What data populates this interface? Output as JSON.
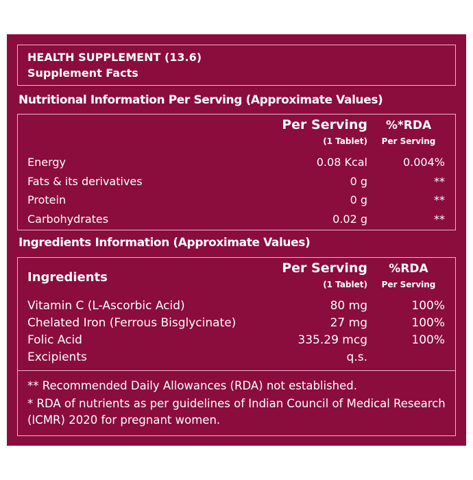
{
  "header": {
    "title": "HEALTH SUPPLEMENT (13.6)",
    "subtitle": "Supplement Facts"
  },
  "nutrition": {
    "heading": "Nutritional Information Per Serving (Approximate Values)",
    "columns": [
      {
        "title": "Per Serving",
        "sub": "(1 Tablet)"
      },
      {
        "title": "%*RDA",
        "sub": "Per Serving"
      }
    ],
    "rows": [
      [
        "Energy",
        "0.08 Kcal",
        "0.004%"
      ],
      [
        "Fats & its derivatives",
        "0 g",
        "**"
      ],
      [
        "Protein",
        "0 g",
        "**"
      ],
      [
        "Carbohydrates",
        "0.02 g",
        "**"
      ]
    ]
  },
  "ingredients": {
    "heading": "Ingredients Information (Approximate Values)",
    "label": "Ingredients",
    "columns": [
      {
        "title": "Per Serving",
        "sub": "(1 Tablet)"
      },
      {
        "title": "%RDA",
        "sub": "Per Serving"
      }
    ],
    "rows": [
      [
        "Vitamin C (L-Ascorbic Acid)",
        "80 mg",
        "100%"
      ],
      [
        "Chelated Iron (Ferrous Bisglycinate)",
        "27 mg",
        "100%"
      ],
      [
        "Folic Acid",
        "335.29 mcg",
        "100%"
      ],
      [
        "Excipients",
        "q.s."
      ]
    ]
  },
  "footnotes": [
    "** Recommended Daily Allowances (RDA) not established.",
    "* RDA of nutrients as per guidelines of Indian Council of Medical Research (ICMR) 2020 for pregnant women."
  ]
}
